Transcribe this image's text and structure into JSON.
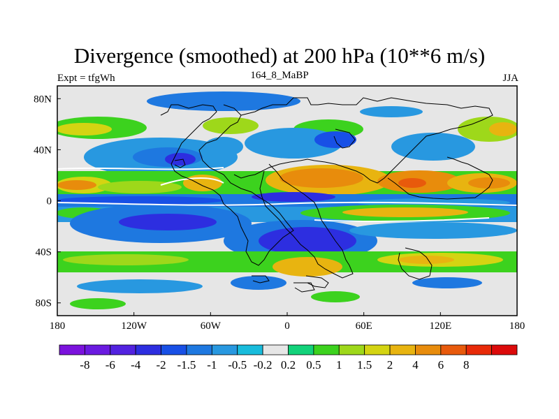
{
  "title": "Divergence (smoothed) at 200 hPa (10**6 m/s)",
  "left_label": "Expt = tfgWh",
  "center_label": "164_8_MaBP",
  "right_label": "JJA",
  "map": {
    "lon_range": [
      -180,
      180
    ],
    "lat_range": [
      -90,
      90
    ],
    "lon_ticks": [
      {
        "value": -180,
        "label": "180"
      },
      {
        "value": -120,
        "label": "120W"
      },
      {
        "value": -60,
        "label": "60W"
      },
      {
        "value": 0,
        "label": "0"
      },
      {
        "value": 60,
        "label": "60E"
      },
      {
        "value": 120,
        "label": "120E"
      },
      {
        "value": 180,
        "label": "180"
      }
    ],
    "lat_ticks": [
      {
        "value": 80,
        "label": "80N"
      },
      {
        "value": 40,
        "label": "40N"
      },
      {
        "value": 0,
        "label": "0"
      },
      {
        "value": -40,
        "label": "40S"
      },
      {
        "value": -80,
        "label": "80S"
      }
    ]
  },
  "colorbar": {
    "colors": [
      "#7b12dd",
      "#6a1ae0",
      "#5222e0",
      "#2d2ee0",
      "#1850e6",
      "#1e78e0",
      "#2898e0",
      "#18bcdc",
      "#e6e6e6",
      "#12d27a",
      "#3cd21e",
      "#9ed81a",
      "#d4d412",
      "#e8b410",
      "#e88c0c",
      "#e85a0c",
      "#e82a08",
      "#dc0a0a"
    ],
    "labels": [
      "-8",
      "-6",
      "-4",
      "-2",
      "-1.5",
      "-1",
      "-0.5",
      "-0.2",
      "0.2",
      "0.5",
      "1",
      "1.5",
      "2",
      "4",
      "6",
      "8"
    ]
  }
}
